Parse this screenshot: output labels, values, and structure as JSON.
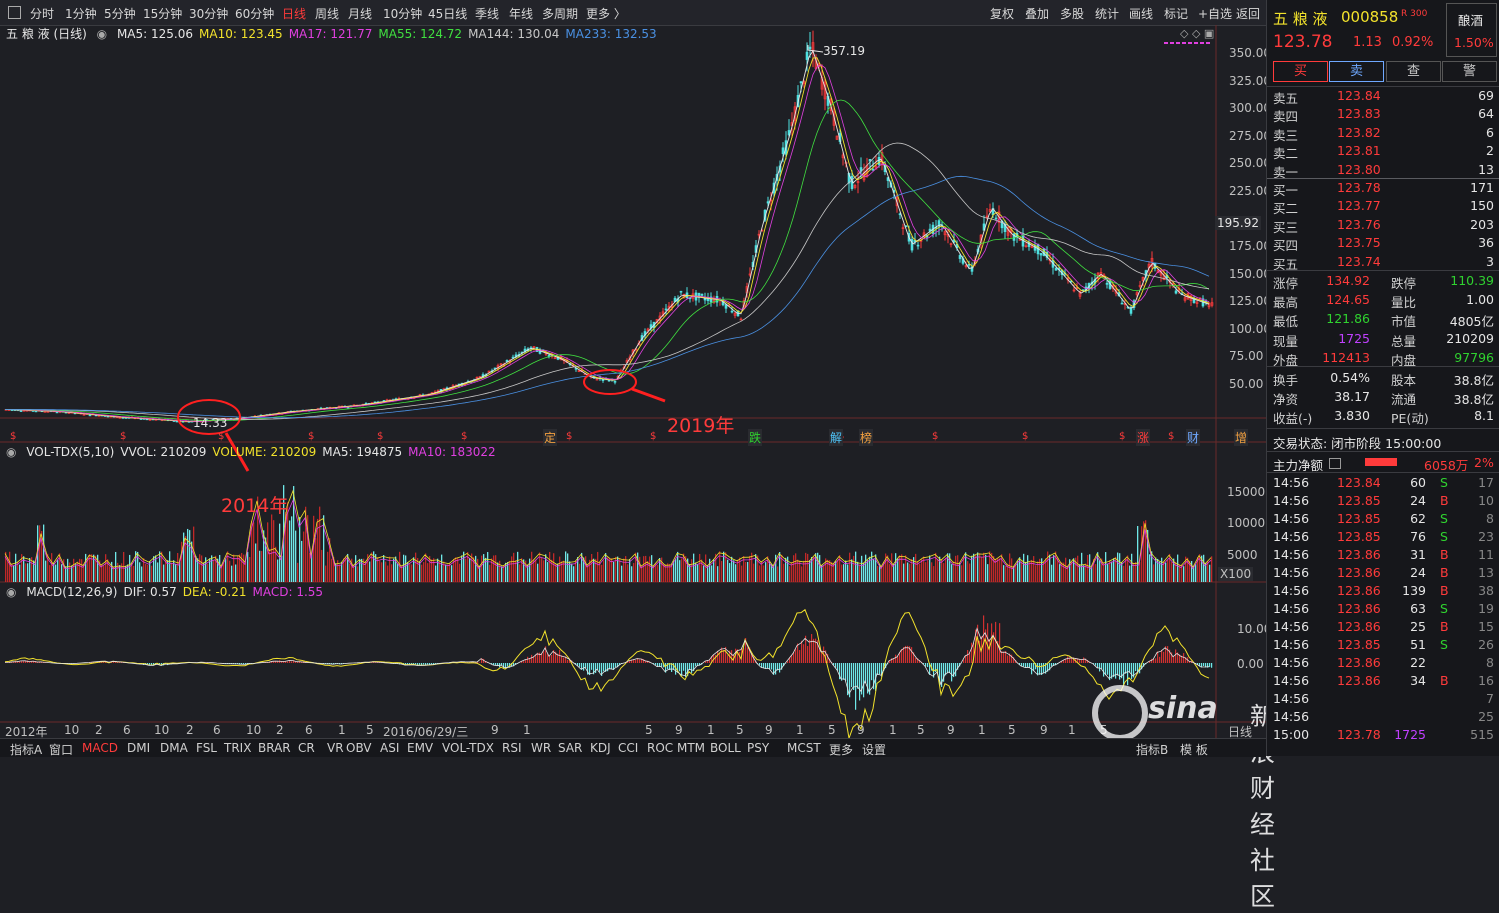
{
  "toolbar": {
    "periods": [
      "分时",
      "1分钟",
      "5分钟",
      "15分钟",
      "30分钟",
      "60分钟",
      "日线",
      "周线",
      "月线",
      "10分钟",
      "45日线",
      "季线",
      "年线",
      "多周期",
      "更多 〉"
    ],
    "active_period": "日线",
    "actions": [
      "复权",
      "叠加",
      "多股",
      "统计",
      "画线",
      "标记",
      "+自选",
      "返回"
    ]
  },
  "price_pane": {
    "title": "五 粮 液 (日线)",
    "ma": [
      {
        "label": "MA5: 125.06",
        "color": "#e6e6e6"
      },
      {
        "label": "MA10: 123.45",
        "color": "#f2e22c"
      },
      {
        "label": "MA17: 121.77",
        "color": "#e040e0"
      },
      {
        "label": "MA55: 124.72",
        "color": "#40e040"
      },
      {
        "label": "MA144: 130.04",
        "color": "#c8c8c8"
      },
      {
        "label": "MA233: 132.53",
        "color": "#4a90e2"
      }
    ],
    "y_ticks": [
      "350.00",
      "325.00",
      "300.00",
      "275.00",
      "250.00",
      "225.00",
      "195.92",
      "175.00",
      "150.00",
      "125.00",
      "100.00",
      "75.00",
      "50.00"
    ],
    "high_label": "357.19",
    "low_label": "14.33",
    "annotations": [
      "2019年",
      "2014年"
    ],
    "markers": [
      "定",
      "跌",
      "解",
      "榜",
      "涨",
      "财",
      "增"
    ]
  },
  "volume_pane": {
    "legend": [
      {
        "label": "VOL-TDX(5,10)",
        "color": "#e6e6e6"
      },
      {
        "label": "VVOL: 210209",
        "color": "#e6e6e6"
      },
      {
        "label": "VOLUME: 210209",
        "color": "#f2e22c"
      },
      {
        "label": "MA5: 194875",
        "color": "#e6e6e6"
      },
      {
        "label": "MA10: 183022",
        "color": "#e040e0"
      }
    ],
    "y_ticks": [
      "15000",
      "10000",
      "5000"
    ],
    "unit": "X100"
  },
  "macd_pane": {
    "legend": [
      {
        "label": "MACD(12,26,9)",
        "color": "#e6e6e6"
      },
      {
        "label": "DIF: 0.57",
        "color": "#e6e6e6"
      },
      {
        "label": "DEA: -0.21",
        "color": "#f2e22c"
      },
      {
        "label": "MACD: 1.55",
        "color": "#e040e0"
      }
    ],
    "y_ticks": [
      "10.00",
      "0.00"
    ]
  },
  "x_axis": {
    "labels": [
      "2012年",
      "10",
      "2",
      "6",
      "10",
      "2",
      "6",
      "10",
      "2",
      "6",
      "1",
      "5",
      "2016/06/29/三",
      "9",
      "1",
      "5",
      "9",
      "1",
      "5",
      "9",
      "1",
      "5",
      "9",
      "1",
      "5",
      "9",
      "1",
      "5",
      "9",
      "1",
      "5"
    ],
    "period_label": "日线"
  },
  "bottom_tabs": [
    "指标A",
    "窗口",
    "MACD",
    "DMI",
    "DMA",
    "FSL",
    "TRIX",
    "BRAR",
    "CR",
    "VR",
    "OBV",
    "ASI",
    "EMV",
    "VOL-TDX",
    "RSI",
    "WR",
    "SAR",
    "KDJ",
    "CCI",
    "ROC",
    "MTM",
    "BOLL",
    "PSY",
    "MCST",
    "更多",
    "设置"
  ],
  "bottom_tabs_active": "MACD",
  "bottom_right": [
    "指标B",
    "模 板"
  ],
  "stock": {
    "name": "五 粮 液",
    "code": "000858",
    "badge": "R 300",
    "sector": "酿酒",
    "sector_change": "1.50%",
    "price": "123.78",
    "change": "1.13",
    "change_pct": "0.92%"
  },
  "trade_buttons": [
    "买",
    "卖",
    "查",
    "警"
  ],
  "order_book": {
    "asks": [
      {
        "label": "卖五",
        "price": "123.84",
        "vol": "69"
      },
      {
        "label": "卖四",
        "price": "123.83",
        "vol": "64"
      },
      {
        "label": "卖三",
        "price": "123.82",
        "vol": "6"
      },
      {
        "label": "卖二",
        "price": "123.81",
        "vol": "2"
      },
      {
        "label": "卖一",
        "price": "123.80",
        "vol": "13"
      }
    ],
    "bids": [
      {
        "label": "买一",
        "price": "123.78",
        "vol": "171"
      },
      {
        "label": "买二",
        "price": "123.77",
        "vol": "150"
      },
      {
        "label": "买三",
        "price": "123.76",
        "vol": "203"
      },
      {
        "label": "买四",
        "price": "123.75",
        "vol": "36"
      },
      {
        "label": "买五",
        "price": "123.74",
        "vol": "3"
      }
    ]
  },
  "stats": [
    [
      {
        "k": "涨停",
        "v": "134.92",
        "c": "red"
      },
      {
        "k": "跌停",
        "v": "110.39",
        "c": "green"
      }
    ],
    [
      {
        "k": "最高",
        "v": "124.65",
        "c": "red"
      },
      {
        "k": "量比",
        "v": "1.00",
        "c": "white"
      }
    ],
    [
      {
        "k": "最低",
        "v": "121.86",
        "c": "green"
      },
      {
        "k": "市值",
        "v": "4805亿",
        "c": "white"
      }
    ],
    [
      {
        "k": "现量",
        "v": "1725",
        "c": "purple"
      },
      {
        "k": "总量",
        "v": "210209",
        "c": "white"
      }
    ],
    [
      {
        "k": "外盘",
        "v": "112413",
        "c": "red"
      },
      {
        "k": "内盘",
        "v": "97796",
        "c": "green"
      }
    ],
    [
      {
        "k": "换手",
        "v": "0.54%",
        "c": "white"
      },
      {
        "k": "股本",
        "v": "38.8亿",
        "c": "white"
      }
    ],
    [
      {
        "k": "净资",
        "v": "38.17",
        "c": "white"
      },
      {
        "k": "流通",
        "v": "38.8亿",
        "c": "white"
      }
    ],
    [
      {
        "k": "收益(-)",
        "v": "3.830",
        "c": "white"
      },
      {
        "k": "PE(动)",
        "v": "8.1",
        "c": "white"
      }
    ]
  ],
  "trade_status": "交易状态: 闭市阶段 15:00:00",
  "main_flow": {
    "label": "主力净额",
    "value": "6058万",
    "pct": "2%"
  },
  "ticks": [
    {
      "t": "14:56",
      "p": "123.84",
      "v": "60",
      "s": "S",
      "n": "17"
    },
    {
      "t": "14:56",
      "p": "123.85",
      "v": "24",
      "s": "B",
      "n": "10"
    },
    {
      "t": "14:56",
      "p": "123.85",
      "v": "62",
      "s": "S",
      "n": "8"
    },
    {
      "t": "14:56",
      "p": "123.85",
      "v": "76",
      "s": "S",
      "n": "23"
    },
    {
      "t": "14:56",
      "p": "123.86",
      "v": "31",
      "s": "B",
      "n": "11"
    },
    {
      "t": "14:56",
      "p": "123.86",
      "v": "24",
      "s": "B",
      "n": "13"
    },
    {
      "t": "14:56",
      "p": "123.86",
      "v": "139",
      "s": "B",
      "n": "38"
    },
    {
      "t": "14:56",
      "p": "123.86",
      "v": "63",
      "s": "S",
      "n": "19"
    },
    {
      "t": "14:56",
      "p": "123.86",
      "v": "25",
      "s": "B",
      "n": "15"
    },
    {
      "t": "14:56",
      "p": "123.85",
      "v": "51",
      "s": "S",
      "n": "26"
    },
    {
      "t": "14:56",
      "p": "123.86",
      "v": "22",
      "s": "",
      "n": "8"
    },
    {
      "t": "14:56",
      "p": "123.86",
      "v": "34",
      "s": "B",
      "n": "16"
    },
    {
      "t": "14:56",
      "p": "",
      "v": "",
      "s": "",
      "n": "7"
    },
    {
      "t": "14:56",
      "p": "",
      "v": "",
      "s": "",
      "n": "25"
    },
    {
      "t": "15:00",
      "p": "123.78",
      "v": "1725",
      "s": "",
      "n": "515"
    }
  ],
  "watermark": "新浪财经社区",
  "watermark_logo": "sina",
  "colors": {
    "up": "#ff3b3b",
    "down": "#2fd22f",
    "bg": "#1e1f24",
    "panel": "#16171b"
  }
}
